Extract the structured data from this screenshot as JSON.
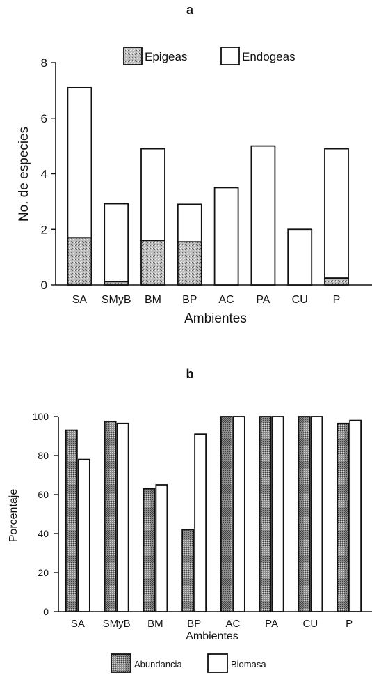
{
  "chart_data": [
    {
      "type": "bar",
      "stacked": true,
      "panel_label": "a",
      "title": "",
      "xlabel": "Ambientes",
      "ylabel": "No. de especies",
      "ylim": [
        0,
        8
      ],
      "yticks": [
        0,
        2,
        4,
        6,
        8
      ],
      "categories": [
        "SA",
        "SMyB",
        "BM",
        "BP",
        "AC",
        "PA",
        "CU",
        "P"
      ],
      "series": [
        {
          "name": "Epigeas",
          "values": [
            1.7,
            0.12,
            1.6,
            1.55,
            0,
            0,
            0,
            0.25
          ],
          "fill": "#aaaaaa"
        },
        {
          "name": "Endogeas",
          "values": [
            5.4,
            2.8,
            3.3,
            1.35,
            3.5,
            5.0,
            2.0,
            4.65
          ],
          "fill": "#ffffff"
        }
      ],
      "legend_position": "top-center",
      "grid": false
    },
    {
      "type": "bar",
      "stacked": false,
      "panel_label": "b",
      "title": "",
      "xlabel": "Ambientes",
      "ylabel": "Porcentaje",
      "ylim": [
        0,
        100
      ],
      "yticks": [
        0,
        20,
        40,
        60,
        80,
        100
      ],
      "categories": [
        "SA",
        "SMyB",
        "BM",
        "BP",
        "AC",
        "PA",
        "CU",
        "P"
      ],
      "series": [
        {
          "name": "Abundancia",
          "values": [
            93,
            97.5,
            63,
            42,
            100,
            100,
            100,
            96.5
          ],
          "fill": "#9a9a9a"
        },
        {
          "name": "Biomasa",
          "values": [
            78,
            96.5,
            65,
            91,
            100,
            100,
            100,
            98
          ],
          "fill": "#ffffff"
        }
      ],
      "legend_position": "bottom-center",
      "grid": false
    }
  ]
}
